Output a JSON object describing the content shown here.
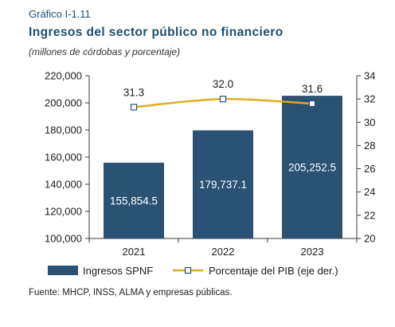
{
  "header": {
    "figure_label": "Gráfico I-1.11",
    "title": "Ingresos del sector público no financiero",
    "subtitle": "(millones de córdobas y porcentaje)"
  },
  "chart_data": {
    "type": "bar",
    "categories": [
      "2021",
      "2022",
      "2023"
    ],
    "series": [
      {
        "name": "Ingresos SPNF",
        "type": "bar",
        "axis": "left",
        "values": [
          155854.5,
          179737.1,
          205252.5
        ],
        "labels": [
          "155,854.5",
          "179,737.1",
          "205,252.5"
        ],
        "color": "#2b5273"
      },
      {
        "name": "Porcentaje del PIB (eje der.)",
        "type": "line",
        "axis": "right",
        "values": [
          31.3,
          32.0,
          31.6
        ],
        "labels": [
          "31.3",
          "32.0",
          "31.6"
        ],
        "color": "#e3ab1f"
      }
    ],
    "y_left": {
      "min": 100000,
      "max": 220000,
      "ticks": [
        "100,000",
        "120,000",
        "140,000",
        "160,000",
        "180,000",
        "200,000",
        "220,000"
      ]
    },
    "y_right": {
      "min": 20,
      "max": 34,
      "ticks": [
        "20",
        "22",
        "24",
        "26",
        "28",
        "30",
        "32",
        "34"
      ]
    },
    "grid": false,
    "legend": "bottom"
  },
  "footer": {
    "source": "Fuente: MHCP, INSS, ALMA y empresas públicas."
  }
}
